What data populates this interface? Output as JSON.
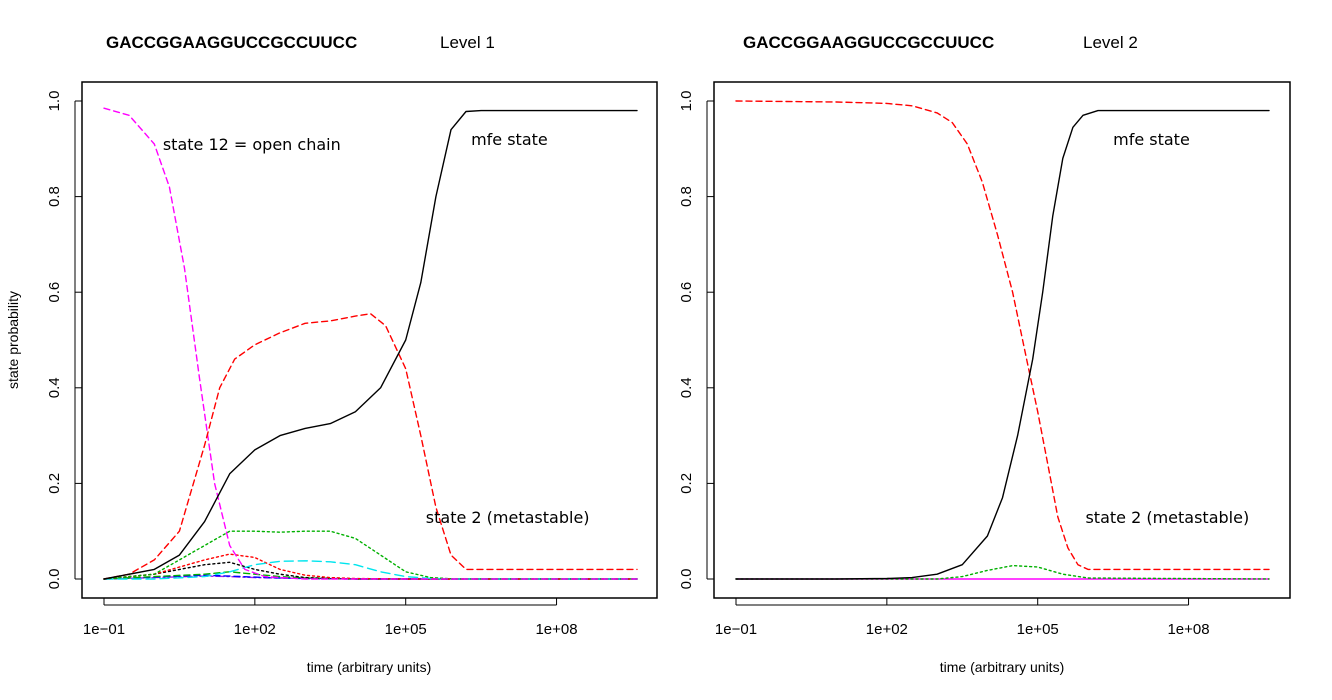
{
  "chart_data": [
    {
      "type": "line",
      "title": "GACCGGAAGGUCCGCCUUCC",
      "subtitle": "Level 1",
      "xlabel": "time (arbitrary units)",
      "ylabel": "state probability",
      "x_scale": "log10",
      "xlim_log10": [
        -1,
        9.6
      ],
      "ylim": [
        0,
        1
      ],
      "x_ticks": [
        {
          "log10": -1,
          "label": "1e−01"
        },
        {
          "log10": 2,
          "label": "1e+02"
        },
        {
          "log10": 5,
          "label": "1e+05"
        },
        {
          "log10": 8,
          "label": "1e+08"
        }
      ],
      "y_ticks": [
        {
          "value": 0,
          "label": "0.0"
        },
        {
          "value": 0.2,
          "label": "0.2"
        },
        {
          "value": 0.4,
          "label": "0.4"
        },
        {
          "value": 0.6,
          "label": "0.6"
        },
        {
          "value": 0.8,
          "label": "0.8"
        },
        {
          "value": 1,
          "label": "1.0"
        }
      ],
      "annotations": [
        {
          "text": "state 12 = open chain",
          "x_log10": 0.17,
          "y": 0.91
        },
        {
          "text": "mfe state",
          "x_log10": 6.3,
          "y": 0.92
        },
        {
          "text": "state 2  (metastable)",
          "x_log10": 5.4,
          "y": 0.13
        }
      ],
      "series": [
        {
          "name": "mfe state",
          "color": "#000000",
          "dash": "solid",
          "x_log10": [
            -1,
            0,
            0.5,
            1,
            1.5,
            2,
            2.5,
            3,
            3.5,
            4,
            4.5,
            5,
            5.3,
            5.6,
            5.9,
            6.2,
            6.5,
            7,
            8,
            9.6
          ],
          "values": [
            0.0,
            0.02,
            0.05,
            0.12,
            0.22,
            0.27,
            0.3,
            0.315,
            0.325,
            0.35,
            0.4,
            0.5,
            0.62,
            0.8,
            0.94,
            0.978,
            0.98,
            0.98,
            0.98,
            0.98
          ]
        },
        {
          "name": "state 2 (metastable)",
          "color": "#ff0000",
          "dash": "6,4",
          "x_log10": [
            -1,
            -0.5,
            0,
            0.5,
            1,
            1.3,
            1.6,
            2,
            2.5,
            3,
            3.5,
            4,
            4.3,
            4.6,
            5,
            5.3,
            5.6,
            5.9,
            6.2,
            7,
            8,
            9.6
          ],
          "values": [
            0.0,
            0.01,
            0.04,
            0.1,
            0.28,
            0.4,
            0.46,
            0.49,
            0.515,
            0.535,
            0.54,
            0.55,
            0.555,
            0.53,
            0.44,
            0.3,
            0.15,
            0.05,
            0.02,
            0.02,
            0.02,
            0.02
          ]
        },
        {
          "name": "state 12 (open chain)",
          "color": "#ff00ff",
          "dash": "6,4",
          "x_log10": [
            -1,
            -0.5,
            0,
            0.3,
            0.6,
            0.9,
            1.2,
            1.5,
            1.8,
            2.2,
            3,
            4,
            6,
            8,
            9.6
          ],
          "values": [
            0.985,
            0.97,
            0.91,
            0.82,
            0.65,
            0.42,
            0.2,
            0.07,
            0.02,
            0.005,
            0.0,
            0.0,
            0.0,
            0.0,
            0.0
          ]
        },
        {
          "name": "green dotted",
          "color": "#00b000",
          "dash": "2,3",
          "x_log10": [
            -1,
            0,
            1,
            1.5,
            2,
            2.5,
            3,
            3.5,
            4,
            4.5,
            5,
            5.5,
            6,
            9.6
          ],
          "values": [
            0.0,
            0.01,
            0.07,
            0.1,
            0.1,
            0.098,
            0.1,
            0.1,
            0.085,
            0.05,
            0.015,
            0.003,
            0.0,
            0.0
          ]
        },
        {
          "name": "cyan dashed",
          "color": "#00e5ee",
          "dash": "9,5",
          "x_log10": [
            -1,
            0,
            1,
            1.5,
            2,
            2.5,
            3,
            3.5,
            4,
            4.5,
            5,
            5.5,
            6,
            9.6
          ],
          "values": [
            0.0,
            0.0,
            0.005,
            0.015,
            0.03,
            0.037,
            0.038,
            0.036,
            0.03,
            0.015,
            0.005,
            0.001,
            0.0,
            0.0
          ]
        },
        {
          "name": "red dotted",
          "color": "#ff0000",
          "dash": "2,3",
          "x_log10": [
            -1,
            0,
            1,
            1.5,
            2,
            2.5,
            3,
            3.5,
            4,
            5,
            9.6
          ],
          "values": [
            0.0,
            0.01,
            0.04,
            0.052,
            0.045,
            0.02,
            0.008,
            0.003,
            0.001,
            0.0,
            0.0
          ]
        },
        {
          "name": "black dotted",
          "color": "#000000",
          "dash": "2,3",
          "x_log10": [
            -1,
            0,
            1,
            1.5,
            2,
            2.5,
            3,
            3.5,
            4,
            9.6
          ],
          "values": [
            0.0,
            0.01,
            0.03,
            0.035,
            0.02,
            0.01,
            0.003,
            0.001,
            0.0,
            0.0
          ]
        },
        {
          "name": "green dashed",
          "color": "#00b000",
          "dash": "6,4",
          "x_log10": [
            -1,
            0,
            1,
            1.5,
            2,
            2.5,
            3,
            4,
            5,
            9.6
          ],
          "values": [
            0.0,
            0.005,
            0.01,
            0.015,
            0.01,
            0.005,
            0.002,
            0.0,
            0.0,
            0.0
          ]
        },
        {
          "name": "blue dashed",
          "color": "#0000ff",
          "dash": "6,4",
          "x_log10": [
            -1,
            0,
            1,
            1.5,
            2,
            2.5,
            3,
            4,
            9.6
          ],
          "values": [
            0.0,
            0.004,
            0.008,
            0.006,
            0.004,
            0.002,
            0.001,
            0.0,
            0.0
          ]
        },
        {
          "name": "purple dash-dot",
          "color": "#a020f0",
          "dash": "8,3,2,3",
          "x_log10": [
            -1,
            0,
            1,
            1.5,
            2,
            3,
            4,
            9.6
          ],
          "values": [
            0.0,
            0.003,
            0.006,
            0.005,
            0.003,
            0.001,
            0.0,
            0.0
          ]
        }
      ]
    },
    {
      "type": "line",
      "title": "GACCGGAAGGUCCGCCUUCC",
      "subtitle": "Level 2",
      "xlabel": "time (arbitrary units)",
      "ylabel": "",
      "x_scale": "log10",
      "xlim_log10": [
        -1,
        9.6
      ],
      "ylim": [
        0,
        1
      ],
      "x_ticks": [
        {
          "log10": -1,
          "label": "1e−01"
        },
        {
          "log10": 2,
          "label": "1e+02"
        },
        {
          "log10": 5,
          "label": "1e+05"
        },
        {
          "log10": 8,
          "label": "1e+08"
        }
      ],
      "y_ticks": [
        {
          "value": 0,
          "label": "0.0"
        },
        {
          "value": 0.2,
          "label": "0.2"
        },
        {
          "value": 0.4,
          "label": "0.4"
        },
        {
          "value": 0.6,
          "label": "0.6"
        },
        {
          "value": 0.8,
          "label": "0.8"
        },
        {
          "value": 1,
          "label": "1.0"
        }
      ],
      "annotations": [
        {
          "text": "mfe state",
          "x_log10": 6.5,
          "y": 0.92
        },
        {
          "text": "state 2  (metastable)",
          "x_log10": 5.95,
          "y": 0.13
        }
      ],
      "series": [
        {
          "name": "mfe state",
          "color": "#000000",
          "dash": "solid",
          "x_log10": [
            -1,
            1,
            2,
            2.5,
            3,
            3.5,
            4,
            4.3,
            4.6,
            4.9,
            5.1,
            5.3,
            5.5,
            5.7,
            5.9,
            6.2,
            6.5,
            7,
            8,
            9.6
          ],
          "values": [
            0.0,
            0.0,
            0.001,
            0.003,
            0.01,
            0.03,
            0.09,
            0.17,
            0.3,
            0.46,
            0.6,
            0.76,
            0.88,
            0.945,
            0.97,
            0.98,
            0.98,
            0.98,
            0.98,
            0.98
          ]
        },
        {
          "name": "state 2 (metastable)",
          "color": "#ff0000",
          "dash": "6,4",
          "x_log10": [
            -1,
            1,
            2,
            2.5,
            3,
            3.3,
            3.6,
            3.9,
            4.2,
            4.5,
            4.8,
            5.0,
            5.2,
            5.4,
            5.6,
            5.8,
            6.0,
            6.3,
            7,
            8,
            9.6
          ],
          "values": [
            1.0,
            0.998,
            0.995,
            0.99,
            0.975,
            0.955,
            0.91,
            0.83,
            0.72,
            0.6,
            0.45,
            0.35,
            0.24,
            0.13,
            0.065,
            0.03,
            0.02,
            0.02,
            0.02,
            0.02,
            0.02
          ]
        },
        {
          "name": "green dotted",
          "color": "#00b000",
          "dash": "2,3",
          "x_log10": [
            -1,
            3,
            3.5,
            4,
            4.5,
            5,
            5.5,
            6,
            9.6
          ],
          "values": [
            0.0,
            0.0,
            0.005,
            0.018,
            0.028,
            0.025,
            0.01,
            0.002,
            0.0
          ]
        },
        {
          "name": "magenta baseline",
          "color": "#ff00ff",
          "dash": "solid",
          "x_log10": [
            -1,
            9.6
          ],
          "values": [
            0.0,
            0.0
          ]
        }
      ]
    }
  ]
}
